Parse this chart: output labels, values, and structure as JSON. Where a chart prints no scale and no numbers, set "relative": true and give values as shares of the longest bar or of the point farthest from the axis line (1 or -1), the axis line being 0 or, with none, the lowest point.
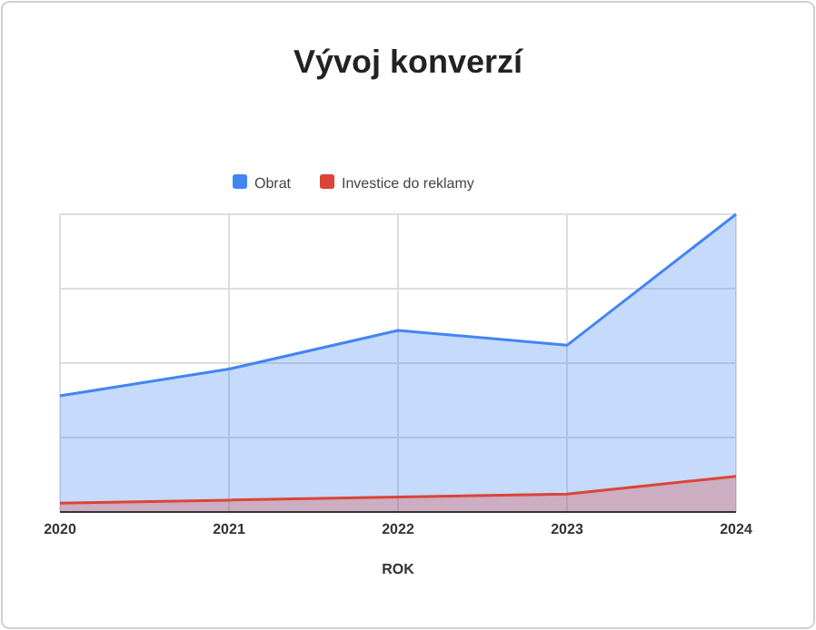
{
  "chart_data": {
    "type": "area",
    "title": "Vývoj konverzí",
    "xlabel": "ROK",
    "categories": [
      "2020",
      "2021",
      "2022",
      "2023",
      "2024"
    ],
    "relative": true,
    "grid": true,
    "legend": "top",
    "series": [
      {
        "name": "Obrat",
        "color": "#4285f4",
        "values": [
          0.39,
          0.48,
          0.61,
          0.56,
          1
        ]
      },
      {
        "name": "Investice do reklamy",
        "color": "#db4437",
        "values": [
          0.03,
          0.04,
          0.05,
          0.06,
          0.12
        ]
      }
    ]
  }
}
